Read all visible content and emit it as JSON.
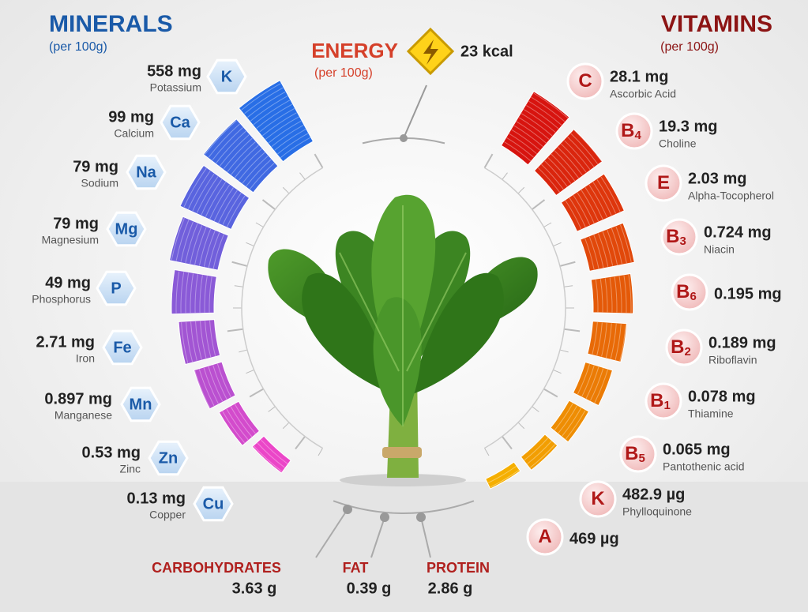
{
  "minerals": {
    "title": "MINERALS",
    "subtitle": "(per 100g)",
    "items": [
      {
        "symbol": "K",
        "amount": "558 mg",
        "name": "Potassium"
      },
      {
        "symbol": "Ca",
        "amount": "99 mg",
        "name": "Calcium"
      },
      {
        "symbol": "Na",
        "amount": "79 mg",
        "name": "Sodium"
      },
      {
        "symbol": "Mg",
        "amount": "79 mg",
        "name": "Magnesium"
      },
      {
        "symbol": "P",
        "amount": "49 mg",
        "name": "Phosphorus"
      },
      {
        "symbol": "Fe",
        "amount": "2.71 mg",
        "name": "Iron"
      },
      {
        "symbol": "Mn",
        "amount": "0.897 mg",
        "name": "Manganese"
      },
      {
        "symbol": "Zn",
        "amount": "0.53 mg",
        "name": "Zinc"
      },
      {
        "symbol": "Cu",
        "amount": "0.13 mg",
        "name": "Copper"
      }
    ]
  },
  "vitamins": {
    "title": "VITAMINS",
    "subtitle": "(per 100g)",
    "items": [
      {
        "symbol": "C",
        "amount": "28.1 mg",
        "name": "Ascorbic Acid"
      },
      {
        "symbol": "B",
        "subscript": "4",
        "amount": "19.3 mg",
        "name": "Choline"
      },
      {
        "symbol": "E",
        "amount": "2.03 mg",
        "name": "Alpha-Tocopherol"
      },
      {
        "symbol": "B",
        "subscript": "3",
        "amount": "0.724 mg",
        "name": "Niacin"
      },
      {
        "symbol": "B",
        "subscript": "6",
        "amount": "0.195 mg"
      },
      {
        "symbol": "B",
        "subscript": "2",
        "amount": "0.189 mg",
        "name": "Riboflavin"
      },
      {
        "symbol": "B",
        "subscript": "1",
        "amount": "0.078 mg",
        "name": "Thiamine"
      },
      {
        "symbol": "B",
        "subscript": "5",
        "amount": "0.065 mg",
        "name": "Pantothenic acid"
      },
      {
        "symbol": "K",
        "amount": "482.9 µg",
        "name": "Phylloquinone"
      },
      {
        "symbol": "A",
        "amount": "469 µg"
      }
    ]
  },
  "energy": {
    "title": "ENERGY",
    "subtitle": "(per 100g)",
    "amount": "23 kcal"
  },
  "macros": [
    {
      "name": "CARBOHYDRATES",
      "amount": "3.63 g"
    },
    {
      "name": "FAT",
      "amount": "0.39 g"
    },
    {
      "name": "PROTEIN",
      "amount": "2.86 g"
    }
  ]
}
